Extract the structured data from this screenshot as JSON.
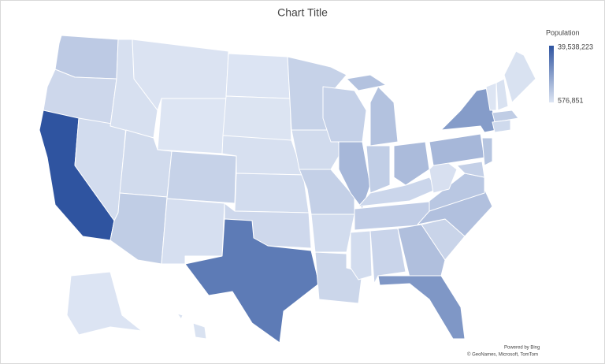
{
  "chart_data": {
    "type": "map",
    "title": "Chart Title",
    "legend_title": "Population",
    "colorscale": {
      "min": {
        "value": 576851,
        "label": "576,851"
      },
      "max": {
        "value": 39538223,
        "label": "39,538,223"
      },
      "colors": [
        "#dde5f3",
        "#2f54a0"
      ]
    },
    "values": [
      7705281,
      4237256,
      39538223,
      3104614,
      1839106,
      1084225,
      576851,
      3271616,
      7151502,
      5773714,
      2117522,
      779094,
      886667,
      1961504,
      2937880,
      3959353,
      29145505,
      5706494,
      3190369,
      6154913,
      3011524,
      4657757,
      5893718,
      12812508,
      10077331,
      6785528,
      11799448,
      4505836,
      6910840,
      2961279,
      5024279,
      10711908,
      21538187,
      5118425,
      10439388,
      8631393,
      1793716,
      13002700,
      20201249,
      9288994,
      6177224,
      643077,
      1377529,
      1362359,
      7029917,
      3605944,
      733391,
      1455271
    ],
    "credits": [
      "Powered by Bing",
      "© GeoNames, Microsoft, TomTom"
    ]
  }
}
